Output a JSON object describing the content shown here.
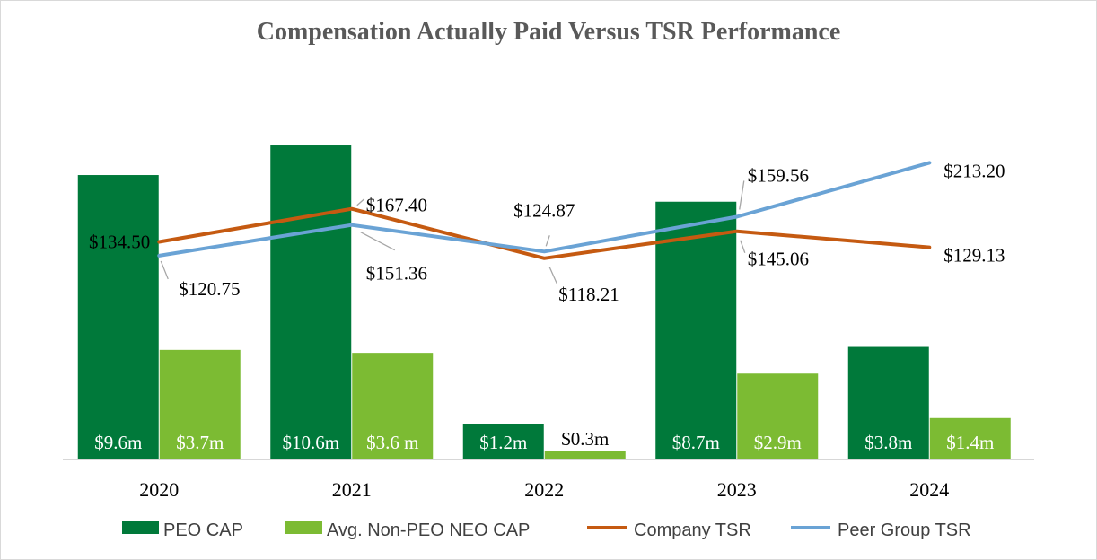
{
  "chart_data": {
    "type": "bar",
    "title": "Compensation Actually Paid Versus TSR Performance",
    "categories": [
      "2020",
      "2021",
      "2022",
      "2023",
      "2024"
    ],
    "series": [
      {
        "name": "PEO CAP",
        "kind": "bar",
        "color": "#00793a",
        "label_color": "#ffffff",
        "values": [
          9.6,
          10.6,
          1.2,
          8.7,
          3.8
        ],
        "labels": [
          "$9.6m",
          "$10.6m",
          "$1.2m",
          "$8.7m",
          "$3.8m"
        ]
      },
      {
        "name": "Avg. Non-PEO NEO CAP",
        "kind": "bar",
        "color": "#7cbb33",
        "label_color": "#ffffff",
        "values": [
          3.7,
          3.6,
          0.3,
          2.9,
          1.4
        ],
        "labels": [
          "$3.7m",
          "$3.6 m",
          "$0.3m",
          "$2.9m",
          "$1.4m"
        ]
      },
      {
        "name": "Company TSR",
        "kind": "line",
        "color": "#c55a11",
        "values": [
          134.5,
          167.4,
          118.21,
          145.06,
          129.13
        ],
        "labels": [
          "$134.50",
          "$167.40",
          "$118.21",
          "$145.06",
          "$129.13"
        ]
      },
      {
        "name": "Peer Group TSR",
        "kind": "line",
        "color": "#6aa3d5",
        "values": [
          120.75,
          151.36,
          124.87,
          159.56,
          213.2
        ],
        "labels": [
          "$120.75",
          "$151.36",
          "$124.87",
          "$159.56",
          "$213.20"
        ]
      }
    ],
    "bar_axis": {
      "unit": "$m",
      "ylim": [
        0,
        11.6
      ]
    },
    "line_axis": {
      "unit": "$",
      "ylim": [
        -82,
        260
      ]
    },
    "legend_position": "bottom",
    "grid": false
  }
}
